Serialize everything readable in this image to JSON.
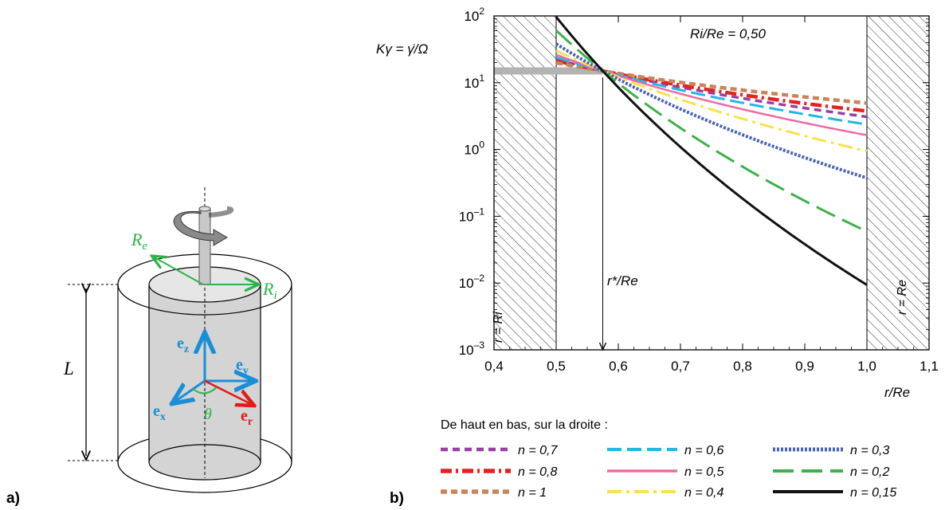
{
  "figure": {
    "panel_a_label": "a)",
    "panel_b_label": "b)"
  },
  "diagram": {
    "label_Re": "R",
    "label_Re_sub": "e",
    "label_Ri": "R",
    "label_Ri_sub": "i",
    "label_L": "L",
    "label_ez": "e",
    "label_ez_sub": "z",
    "label_ey": "e",
    "label_ey_sub": "y",
    "label_ex": "e",
    "label_ex_sub": "x",
    "label_er": "e",
    "label_er_sub": "r",
    "label_theta": "θ",
    "colors": {
      "green": "#2db34a",
      "blue": "#1a8fd6",
      "red": "#e11b1b",
      "gray": "#d4d4d4"
    }
  },
  "chart_data": {
    "type": "line",
    "title": "Ri/Re = 0,50",
    "xlabel": "r/Re",
    "ylabel": "Kγ = γ̇/Ω",
    "xlim": [
      0.4,
      1.1
    ],
    "ylim_log10": [
      -3,
      2
    ],
    "log_y": true,
    "x_ticks": [
      "0,4",
      "0,5",
      "0,6",
      "0,7",
      "0,8",
      "0,9",
      "1,0",
      "1,1"
    ],
    "x_tick_values": [
      0.4,
      0.5,
      0.6,
      0.7,
      0.8,
      0.9,
      1.0,
      1.1
    ],
    "y_ticks": [
      {
        "base": "10",
        "exp": "2",
        "value": 2
      },
      {
        "base": "10",
        "exp": "1",
        "value": 1
      },
      {
        "base": "10",
        "exp": "0",
        "value": 0
      },
      {
        "base": "10",
        "exp": "–1",
        "value": -1
      },
      {
        "base": "10",
        "exp": "–2",
        "value": -2
      },
      {
        "base": "10",
        "exp": "–3",
        "value": -3
      }
    ],
    "hatch_left_label": "r = Ri",
    "hatch_right_label": "r = Re",
    "r_star_label": "r*/Re",
    "r_star_value": 0.575,
    "reference_line_value": 15,
    "legend_heading": "De haut en bas, sur la droite :",
    "series": [
      {
        "name": "n = 0,7",
        "n": 0.7,
        "color": "#9b3fa3",
        "dash": "9,6",
        "width": 3.5
      },
      {
        "name": "n = 0,8",
        "n": 0.8,
        "color": "#e52222",
        "dash": "14,5,3,5",
        "width": 4.5
      },
      {
        "name": "n = 1",
        "n": 1.0,
        "color": "#c8845a",
        "dash": "8,5",
        "width": 4.5
      },
      {
        "name": "n = 0,6",
        "n": 0.6,
        "color": "#25b6e6",
        "dash": "18,7",
        "width": 3
      },
      {
        "name": "n = 0,5",
        "n": 0.5,
        "color": "#ee6aa4",
        "dash": "",
        "width": 2.5
      },
      {
        "name": "n = 0,4",
        "n": 0.4,
        "color": "#f8e24a",
        "dash": "18,6,4,6",
        "width": 3
      },
      {
        "name": "n = 0,3",
        "n": 0.3,
        "color": "#4b63b6",
        "dash": "3,2",
        "width": 4
      },
      {
        "name": "n = 0,2",
        "n": 0.2,
        "color": "#3fb04c",
        "dash": "26,10",
        "width": 3
      },
      {
        "name": "n = 0,15",
        "n": 0.15,
        "color": "#111111",
        "dash": "",
        "width": 3
      }
    ],
    "legend_columns": [
      [
        "n = 0,7",
        "n = 0,8",
        "n = 1"
      ],
      [
        "n = 0,6",
        "n = 0,5",
        "n = 0,4"
      ],
      [
        "n = 0,3",
        "n = 0,2",
        "n = 0,15"
      ]
    ]
  }
}
